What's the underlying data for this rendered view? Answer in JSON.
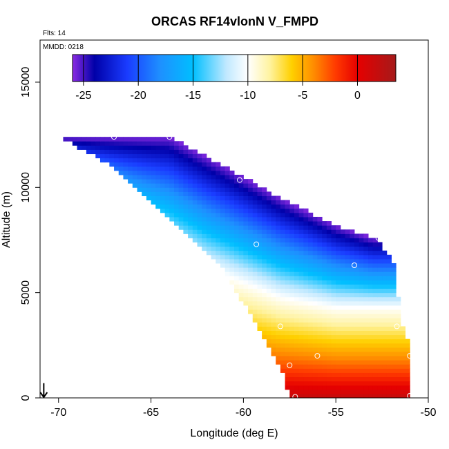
{
  "chart_data": {
    "type": "heatmap",
    "title": "ORCAS RF14vlonN V_FMPD",
    "xlabel": "Longitude (deg E)",
    "ylabel": "Altitude (m)",
    "xlim": [
      -71,
      -50
    ],
    "ylim": [
      0,
      17000
    ],
    "x_ticks": [
      -70,
      -65,
      -60,
      -55,
      -50
    ],
    "x_tick_labels": [
      "-70",
      "-65",
      "-60",
      "-55",
      "-50"
    ],
    "y_ticks": [
      0,
      5000,
      10000,
      15000
    ],
    "y_tick_labels": [
      "0",
      "5000",
      "10000",
      "15000"
    ],
    "annotation_flts": "Flts: 14",
    "annotation_mmdd": "MMDD: 0218",
    "colorbar": {
      "range": [
        -26,
        3.5
      ],
      "ticks": [
        -25,
        -20,
        -15,
        -10,
        -5,
        0
      ],
      "tick_labels": [
        "-25",
        "-20",
        "-15",
        "-10",
        "-5",
        "0"
      ],
      "stops": [
        {
          "v": -26,
          "color": "#8a2be2"
        },
        {
          "v": -24,
          "color": "#0000a8"
        },
        {
          "v": -21,
          "color": "#1a3cff"
        },
        {
          "v": -18,
          "color": "#1e90ff"
        },
        {
          "v": -15,
          "color": "#00bfff"
        },
        {
          "v": -12,
          "color": "#bfe8ff"
        },
        {
          "v": -10,
          "color": "#ffffff"
        },
        {
          "v": -8,
          "color": "#fff3a0"
        },
        {
          "v": -6,
          "color": "#ffd000"
        },
        {
          "v": -4,
          "color": "#ff8c00"
        },
        {
          "v": -2,
          "color": "#ff3a00"
        },
        {
          "v": 0,
          "color": "#e60000"
        },
        {
          "v": 3.5,
          "color": "#a51a1a"
        }
      ]
    },
    "domain": {
      "boundary_left": [
        [
          -70,
          12400
        ],
        [
          -67,
          11000
        ],
        [
          -64,
          8500
        ],
        [
          -61,
          6000
        ],
        [
          -59,
          3000
        ],
        [
          -58,
          1500
        ],
        [
          -57.5,
          0
        ]
      ],
      "boundary_top": [
        [
          -70,
          12400
        ],
        [
          -64,
          12400
        ],
        [
          -61,
          11000
        ],
        [
          -58,
          9500
        ],
        [
          -55,
          8200
        ],
        [
          -53,
          7600
        ]
      ],
      "boundary_right": [
        [
          -53,
          7600
        ],
        [
          -52,
          6500
        ],
        [
          -51.8,
          5000
        ],
        [
          -51.5,
          3500
        ],
        [
          -51,
          2000
        ],
        [
          -51,
          0
        ]
      ],
      "freezing_level": [
        [
          -70,
          10500
        ],
        [
          -66,
          8300
        ],
        [
          -62,
          6200
        ],
        [
          -58,
          4800
        ],
        [
          -55,
          4300
        ],
        [
          -52,
          4300
        ]
      ],
      "top_value": -25,
      "bottom_value": 2
    },
    "observations": [
      {
        "lon": -67,
        "alt": 12400
      },
      {
        "lon": -64,
        "alt": 12400
      },
      {
        "lon": -60.2,
        "alt": 10350
      },
      {
        "lon": -59.3,
        "alt": 7300
      },
      {
        "lon": -52.7,
        "alt": 7600
      },
      {
        "lon": -54,
        "alt": 6300
      },
      {
        "lon": -58,
        "alt": 3400
      },
      {
        "lon": -51.7,
        "alt": 3400
      },
      {
        "lon": -56,
        "alt": 2000
      },
      {
        "lon": -57.5,
        "alt": 1550
      },
      {
        "lon": -51,
        "alt": 2000
      },
      {
        "lon": -51,
        "alt": 100
      },
      {
        "lon": -57.2,
        "alt": 50
      }
    ],
    "wind_arrow": {
      "lon": -70.8,
      "alt_top": 700,
      "alt_bottom": 0
    }
  }
}
